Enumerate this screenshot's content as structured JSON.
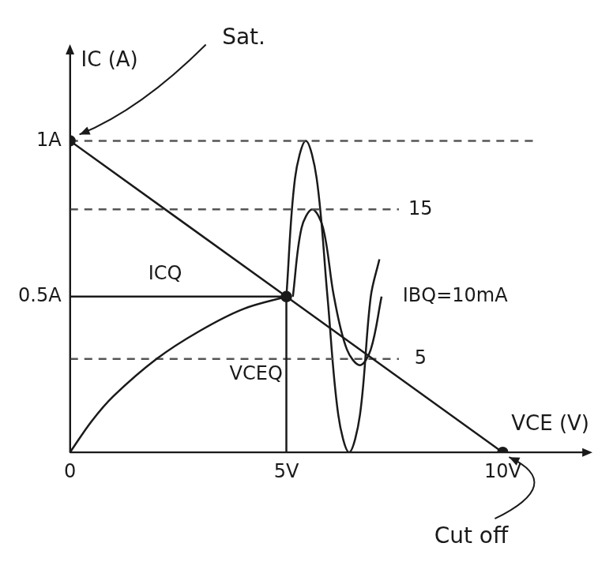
{
  "chart_data": {
    "type": "line",
    "x_label": "VCE (V)",
    "y_label": "IC (A)",
    "xlim": [
      0,
      12
    ],
    "ylim": [
      0,
      1.3
    ],
    "xticks": [
      0,
      {
        "value": 5,
        "label": "5V"
      },
      {
        "value": 10,
        "label": "10V"
      }
    ],
    "yticks": [
      {
        "value": 0.5,
        "label": "0.5A"
      },
      {
        "value": 1,
        "label": "1A"
      }
    ],
    "grid": false,
    "tick_labels": true,
    "series": [
      {
        "x": [
          0,
          5,
          10
        ],
        "values": [
          1,
          0.5,
          0
        ],
        "color": "#1a1a1a",
        "line_style": "solid",
        "marker": "circle"
      },
      {
        "x": [
          0,
          0.5,
          1,
          2,
          3,
          4,
          5
        ],
        "values": [
          0,
          0.1,
          0.18,
          0.3,
          0.39,
          0.46,
          0.5
        ],
        "color": "#1a1a1a",
        "line_style": "solid",
        "marker": "none"
      },
      {
        "x": [
          0,
          5
        ],
        "values": [
          0.5,
          0.5
        ],
        "color": "#1a1a1a",
        "line_style": "solid",
        "marker": "none"
      },
      {
        "x": [
          5,
          5
        ],
        "values": [
          0,
          0.5
        ],
        "color": "#1a1a1a",
        "line_style": "solid",
        "marker": "none"
      },
      {
        "x": [
          0,
          10.8
        ],
        "values": [
          1,
          1
        ],
        "color": "#555555",
        "line_style": "dashed",
        "marker": "none"
      },
      {
        "x": [
          0,
          7.6
        ],
        "values": [
          0.78,
          0.78
        ],
        "color": "#555555",
        "line_style": "dashed",
        "marker": "none"
      },
      {
        "x": [
          0,
          7.6
        ],
        "values": [
          0.3,
          0.3
        ],
        "color": "#555555",
        "line_style": "dashed",
        "marker": "none"
      },
      {
        "x": [
          5.0,
          5.2,
          5.45,
          5.7,
          5.95,
          6.2,
          6.45,
          6.7,
          6.95,
          7.15
        ],
        "values": [
          0.5,
          0.88,
          1.0,
          0.88,
          0.5,
          0.12,
          0.0,
          0.12,
          0.5,
          0.62
        ],
        "color": "#1a1a1a",
        "line_style": "solid",
        "marker": "none"
      },
      {
        "x": [
          5.15,
          5.35,
          5.6,
          5.85,
          6.1,
          6.4,
          6.7,
          6.95,
          7.2
        ],
        "values": [
          0.5,
          0.72,
          0.78,
          0.72,
          0.5,
          0.33,
          0.28,
          0.33,
          0.5
        ],
        "color": "#1a1a1a",
        "line_style": "solid",
        "marker": "none"
      }
    ],
    "annotations": [
      {
        "text": "ICQ",
        "x": 2.2,
        "y": 0.57
      },
      {
        "text": "VCEQ",
        "x": 4.3,
        "y": 0.25
      },
      {
        "text": "15",
        "x": 8.1,
        "y": 0.78
      },
      {
        "text": "IBQ=10mA",
        "x": 8.9,
        "y": 0.5
      },
      {
        "text": "5",
        "x": 8.1,
        "y": 0.3
      }
    ],
    "callouts": [
      {
        "text": "Sat.",
        "x": 0,
        "y": 1
      },
      {
        "text": "Cut off",
        "x": 10,
        "y": 0
      }
    ]
  }
}
